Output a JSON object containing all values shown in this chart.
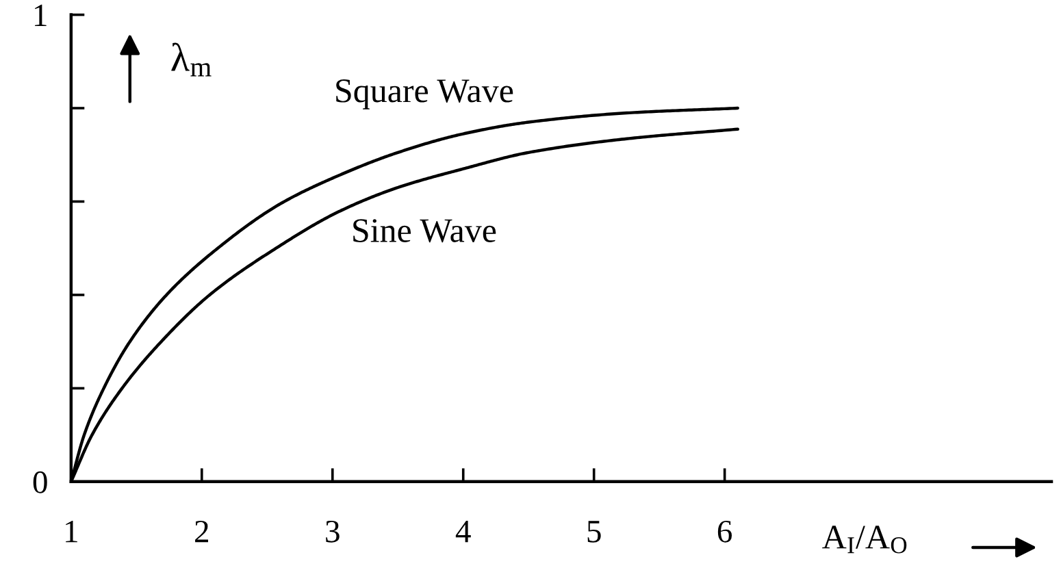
{
  "chart_data": {
    "type": "line",
    "xlabel": "A$_{I}$/A$_{O}$",
    "ylabel": "λ$_{m}$",
    "xlim": [
      1,
      8.5
    ],
    "ylim": [
      0,
      1
    ],
    "xticks": [
      1,
      2,
      3,
      4,
      5,
      6
    ],
    "yticks": [
      0,
      {
        "value": 0.2,
        "label": null
      },
      {
        "value": 0.4,
        "label": null
      },
      {
        "value": 0.6,
        "label": null
      },
      {
        "value": 0.8,
        "label": null
      },
      1
    ],
    "grid": false,
    "legend": false,
    "marker": "none",
    "line_style": "solid",
    "series": [
      {
        "name": "Square Wave",
        "color": "#000000",
        "x": [
          1,
          1.1,
          1.25,
          1.45,
          1.73,
          2.1,
          2.6,
          3.0,
          3.5,
          4.0,
          4.5,
          5.27,
          6.1
        ],
        "values": [
          0,
          0.1,
          0.2,
          0.3,
          0.4,
          0.495,
          0.595,
          0.65,
          0.705,
          0.745,
          0.77,
          0.79,
          0.8
        ]
      },
      {
        "name": "Sine Wave",
        "color": "#000000",
        "x": [
          1,
          1.16,
          1.39,
          1.69,
          2.06,
          2.54,
          3.06,
          3.5,
          4.0,
          4.5,
          5.27,
          6.1
        ],
        "values": [
          0,
          0.1,
          0.2,
          0.3,
          0.4,
          0.495,
          0.58,
          0.63,
          0.67,
          0.705,
          0.735,
          0.755
        ]
      }
    ]
  }
}
